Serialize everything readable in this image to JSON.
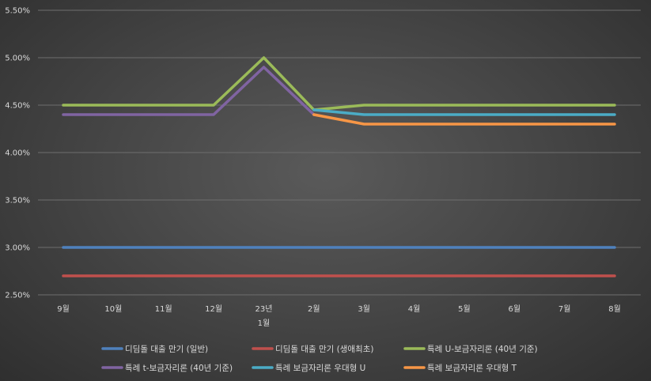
{
  "chart_data": {
    "type": "line",
    "categories": [
      "9월",
      "10월",
      "11월",
      "12월",
      "23년|1월",
      "2월",
      "3월",
      "4월",
      "5월",
      "6월",
      "7월",
      "8월"
    ],
    "y_ticks": [
      "2.50%",
      "3.00%",
      "3.50%",
      "4.00%",
      "4.50%",
      "5.00%",
      "5.50%"
    ],
    "ylim": [
      2.5,
      5.5
    ],
    "grid": true,
    "legend_position": "bottom",
    "series": [
      {
        "name": "디딤돌 대출 만기 (일반)",
        "color": "#4f81bd",
        "values": [
          3.0,
          3.0,
          3.0,
          3.0,
          3.0,
          3.0,
          3.0,
          3.0,
          3.0,
          3.0,
          3.0,
          3.0
        ]
      },
      {
        "name": "디딤돌 대출 만기 (생애최초)",
        "color": "#c0504d",
        "values": [
          2.7,
          2.7,
          2.7,
          2.7,
          2.7,
          2.7,
          2.7,
          2.7,
          2.7,
          2.7,
          2.7,
          2.7
        ]
      },
      {
        "name": "특례 U-보금자리론 (40년 기준)",
        "color": "#9bbb59",
        "values": [
          4.5,
          4.5,
          4.5,
          4.5,
          5.0,
          4.45,
          4.5,
          4.5,
          4.5,
          4.5,
          4.5,
          4.5
        ]
      },
      {
        "name": "특례 t-보금자리론 (40년 기준)",
        "color": "#8064a2",
        "values": [
          4.4,
          4.4,
          4.4,
          4.4,
          4.9,
          4.4,
          null,
          null,
          null,
          null,
          null,
          null
        ]
      },
      {
        "name": "특례 보금자리론 우대형 U",
        "color": "#4bacc6",
        "values": [
          null,
          null,
          null,
          null,
          null,
          4.45,
          4.4,
          4.4,
          4.4,
          4.4,
          4.4,
          4.4
        ]
      },
      {
        "name": "특례 보금자리론 우대형 T",
        "color": "#f79646",
        "values": [
          null,
          null,
          null,
          null,
          null,
          4.4,
          4.3,
          4.3,
          4.3,
          4.3,
          4.3,
          4.3
        ]
      }
    ]
  }
}
